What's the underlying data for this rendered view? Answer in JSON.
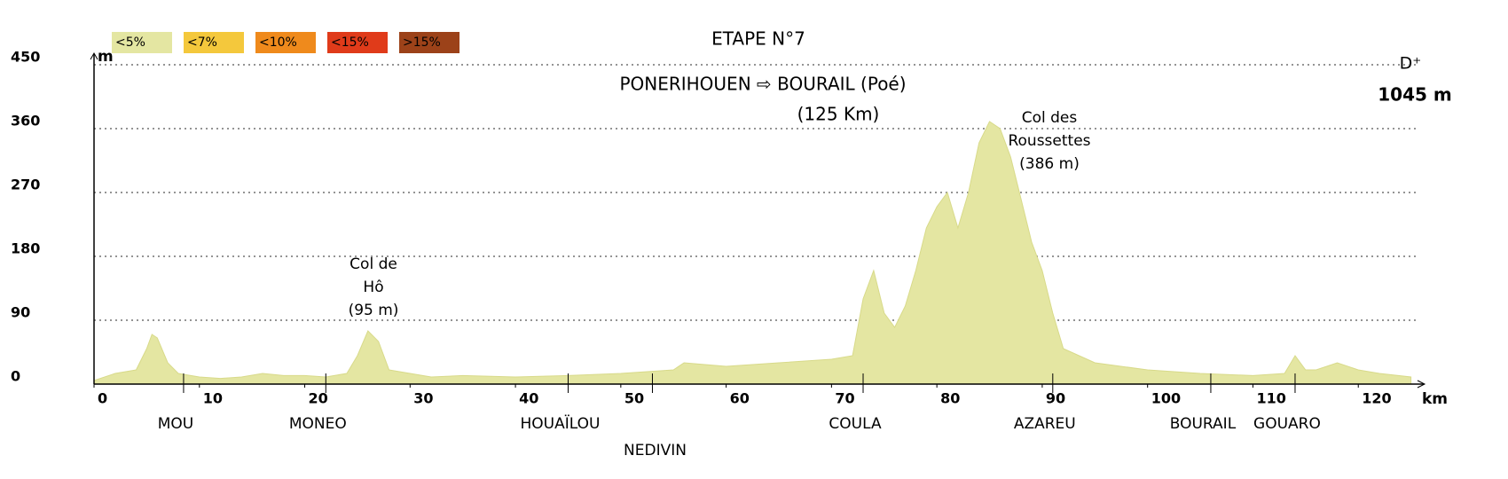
{
  "chart_data": {
    "type": "area",
    "title": "ETAPE N°7",
    "subtitle": "PONERIHOUEN ⇨ BOURAIL (Poé)",
    "distance": "(125 Km)",
    "climb_label": "D⁺",
    "climb_value": "1045 m",
    "y_label": "m",
    "x_label": "km",
    "legend": [
      {
        "name": "<5%",
        "color": "#e4e6a2"
      },
      {
        "name": "<7%",
        "color": "#f4c83c"
      },
      {
        "name": "<10%",
        "color": "#ef8a1c"
      },
      {
        "name": "<15%",
        "color": "#e03b1a"
      },
      {
        "name": ">15%",
        "color": "#9c4219"
      }
    ],
    "annotations": [
      {
        "lines": [
          "Col de",
          "Hô",
          "(95 m)"
        ]
      },
      {
        "lines": [
          "Col des",
          "Roussettes",
          "(386 m)"
        ]
      }
    ],
    "places": [
      {
        "name": "MOU",
        "km": 8.5
      },
      {
        "name": "MONEO",
        "km": 22
      },
      {
        "name": "HOUAÏLOU",
        "km": 45
      },
      {
        "name": "NEDIVIN",
        "km": 53
      },
      {
        "name": "COULA",
        "km": 73
      },
      {
        "name": "AZAREU",
        "km": 91
      },
      {
        "name": "BOURAIL",
        "km": 106
      },
      {
        "name": "GOUARO",
        "km": 114
      }
    ],
    "x": [
      0,
      2,
      4,
      5,
      5.5,
      6,
      7,
      8,
      10,
      12,
      14,
      16,
      18,
      20,
      22,
      24,
      25,
      26,
      27,
      28,
      30,
      32,
      35,
      40,
      45,
      50,
      55,
      56,
      60,
      65,
      70,
      72,
      73,
      74,
      75,
      76,
      77,
      78,
      79,
      80,
      81,
      82,
      83,
      84,
      85,
      86,
      87,
      88,
      89,
      90,
      91,
      92,
      95,
      100,
      105,
      110,
      113,
      114,
      115,
      116,
      118,
      120,
      122,
      125
    ],
    "series": [
      {
        "name": "Altitude",
        "color": "#e4e6a2",
        "values": [
          5,
          15,
          20,
          50,
          70,
          65,
          30,
          15,
          10,
          8,
          10,
          15,
          12,
          12,
          10,
          15,
          40,
          75,
          60,
          20,
          15,
          10,
          12,
          10,
          12,
          15,
          20,
          30,
          25,
          30,
          35,
          40,
          120,
          160,
          100,
          80,
          110,
          160,
          220,
          250,
          270,
          220,
          270,
          340,
          370,
          360,
          320,
          260,
          200,
          160,
          100,
          50,
          30,
          20,
          15,
          12,
          15,
          40,
          20,
          20,
          30,
          20,
          15,
          10
        ]
      }
    ],
    "xlim": [
      0,
      130
    ],
    "ylim": [
      0,
      450
    ],
    "xticks": [
      0,
      10,
      20,
      30,
      40,
      50,
      60,
      70,
      80,
      90,
      100,
      110,
      120
    ],
    "yticks": [
      0,
      90,
      180,
      270,
      360,
      450
    ],
    "grid": true
  }
}
